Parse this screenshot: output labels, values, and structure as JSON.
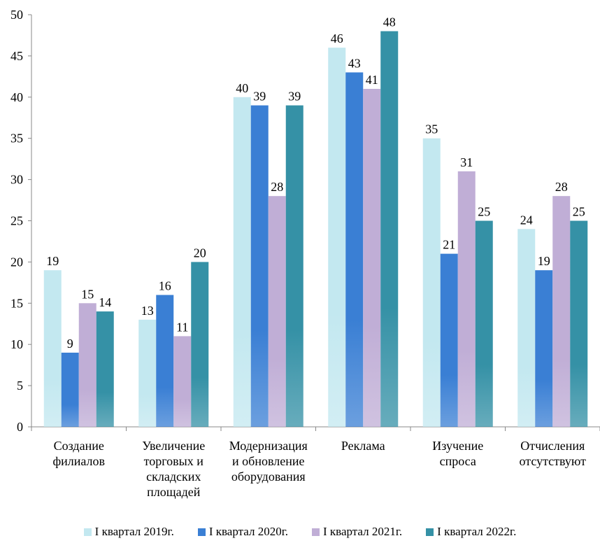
{
  "chart_data": {
    "type": "bar",
    "title": "",
    "xlabel": "",
    "ylabel": "",
    "ylim": [
      0,
      50
    ],
    "yticks": [
      0,
      5,
      10,
      15,
      20,
      25,
      30,
      35,
      40,
      45,
      50
    ],
    "grid": false,
    "legend_position": "bottom",
    "categories": [
      [
        "Создание",
        "филиалов"
      ],
      [
        "Увеличение",
        "торговых и",
        "складских",
        "площадей"
      ],
      [
        "Модернизация",
        "и обновление",
        "оборудования"
      ],
      [
        "Реклама"
      ],
      [
        "Изучение",
        "спроса"
      ],
      [
        "Отчисления",
        "отсутствуют"
      ]
    ],
    "series": [
      {
        "name": "I квартал 2019г.",
        "color": "#c3e8f0",
        "values": [
          19,
          13,
          40,
          46,
          35,
          24
        ]
      },
      {
        "name": "I квартал 2020г.",
        "color": "#3a7fd4",
        "values": [
          9,
          16,
          39,
          43,
          21,
          19
        ]
      },
      {
        "name": "I квартал 2021г.",
        "color": "#c0aed6",
        "values": [
          15,
          11,
          28,
          41,
          31,
          28
        ]
      },
      {
        "name": "I квартал 2022г.",
        "color": "#3591a6",
        "values": [
          14,
          20,
          39,
          48,
          25,
          25
        ]
      }
    ]
  }
}
